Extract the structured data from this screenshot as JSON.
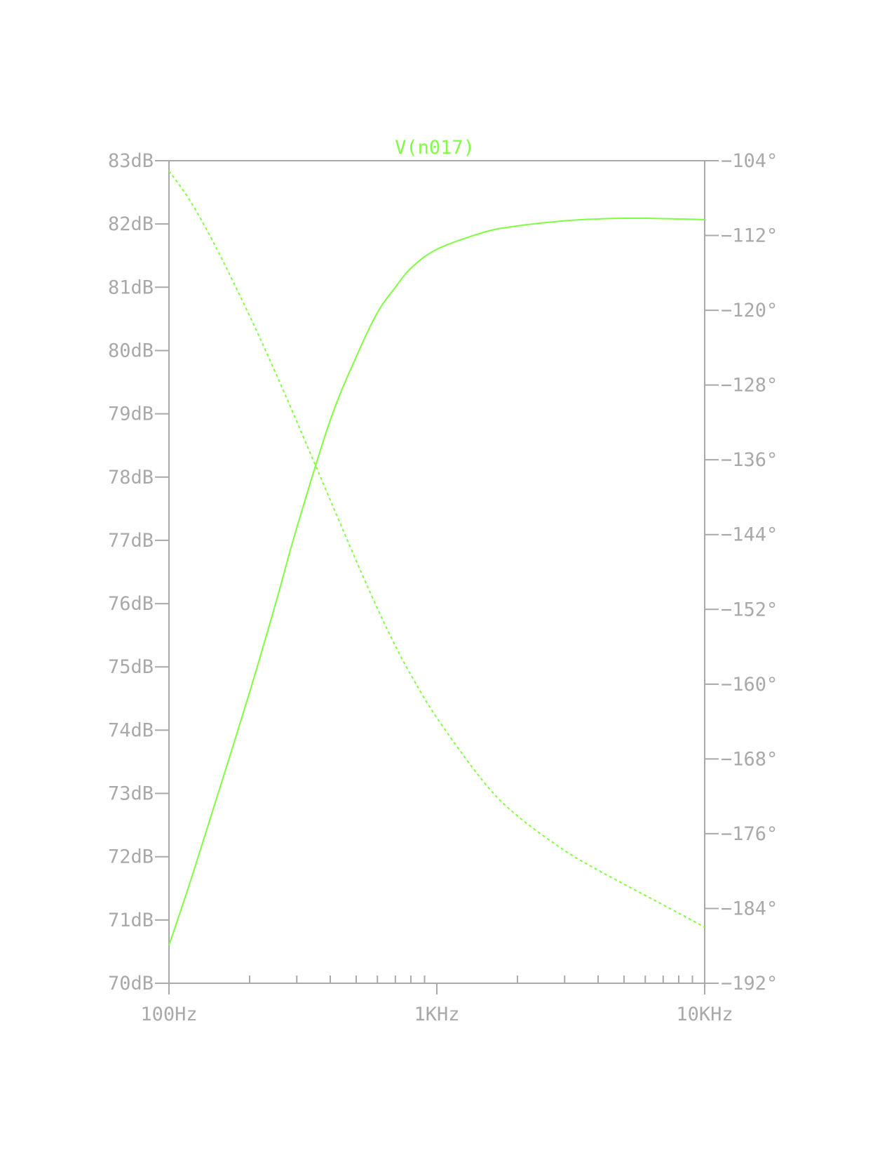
{
  "chart_data": {
    "type": "line",
    "title": "V(n017)",
    "x_scale": "log",
    "xlim": [
      100,
      10000
    ],
    "x_ticks": [
      100,
      1000,
      10000
    ],
    "x_tick_labels": [
      "100Hz",
      "1KHz",
      "10KHz"
    ],
    "x_minor_ticks": [
      200,
      300,
      400,
      500,
      600,
      700,
      800,
      900,
      2000,
      3000,
      4000,
      5000,
      6000,
      7000,
      8000,
      9000
    ],
    "y_left": {
      "ylim": [
        70,
        83
      ],
      "ticks": [
        70,
        71,
        72,
        73,
        74,
        75,
        76,
        77,
        78,
        79,
        80,
        81,
        82,
        83
      ],
      "tick_labels": [
        "70dB",
        "71dB",
        "72dB",
        "73dB",
        "74dB",
        "75dB",
        "76dB",
        "77dB",
        "78dB",
        "79dB",
        "80dB",
        "81dB",
        "82dB",
        "83dB"
      ]
    },
    "y_right": {
      "ylim": [
        -192,
        -104
      ],
      "ticks": [
        -192,
        -184,
        -176,
        -168,
        -160,
        -152,
        -144,
        -136,
        -128,
        -120,
        -112,
        -104
      ],
      "tick_labels": [
        "−192°",
        "−184°",
        "−176°",
        "−168°",
        "−160°",
        "−152°",
        "−144°",
        "−136°",
        "−128°",
        "−120°",
        "−112°",
        "−104°"
      ]
    },
    "grid": false,
    "series": [
      {
        "axis": "left",
        "style": "solid",
        "color": "#80ff40",
        "x": [
          100,
          120,
          150,
          200,
          250,
          300,
          400,
          500,
          600,
          700,
          800,
          1000,
          1500,
          2000,
          3000,
          4000,
          5000,
          6000,
          8000,
          10000
        ],
        "y": [
          70.6,
          71.6,
          72.9,
          74.6,
          76.0,
          77.2,
          78.9,
          79.9,
          80.6,
          81.0,
          81.3,
          81.6,
          81.87,
          81.97,
          82.05,
          82.08,
          82.09,
          82.09,
          82.08,
          82.07
        ]
      },
      {
        "axis": "right",
        "style": "dashed",
        "color": "#80ff40",
        "x": [
          100,
          120,
          150,
          200,
          250,
          300,
          400,
          500,
          600,
          700,
          800,
          1000,
          1500,
          2000,
          3000,
          4000,
          5000,
          6000,
          8000,
          10000
        ],
        "y": [
          -105.1,
          -108.3,
          -113.3,
          -120.6,
          -126.7,
          -131.9,
          -140.3,
          -146.8,
          -151.9,
          -155.9,
          -159.0,
          -163.6,
          -170.5,
          -174.1,
          -177.8,
          -179.9,
          -181.4,
          -182.6,
          -184.5,
          -186.0
        ]
      }
    ]
  },
  "colors": {
    "axis": "#a9a9a9",
    "trace": "#80ff40",
    "background": "#ffffff"
  }
}
